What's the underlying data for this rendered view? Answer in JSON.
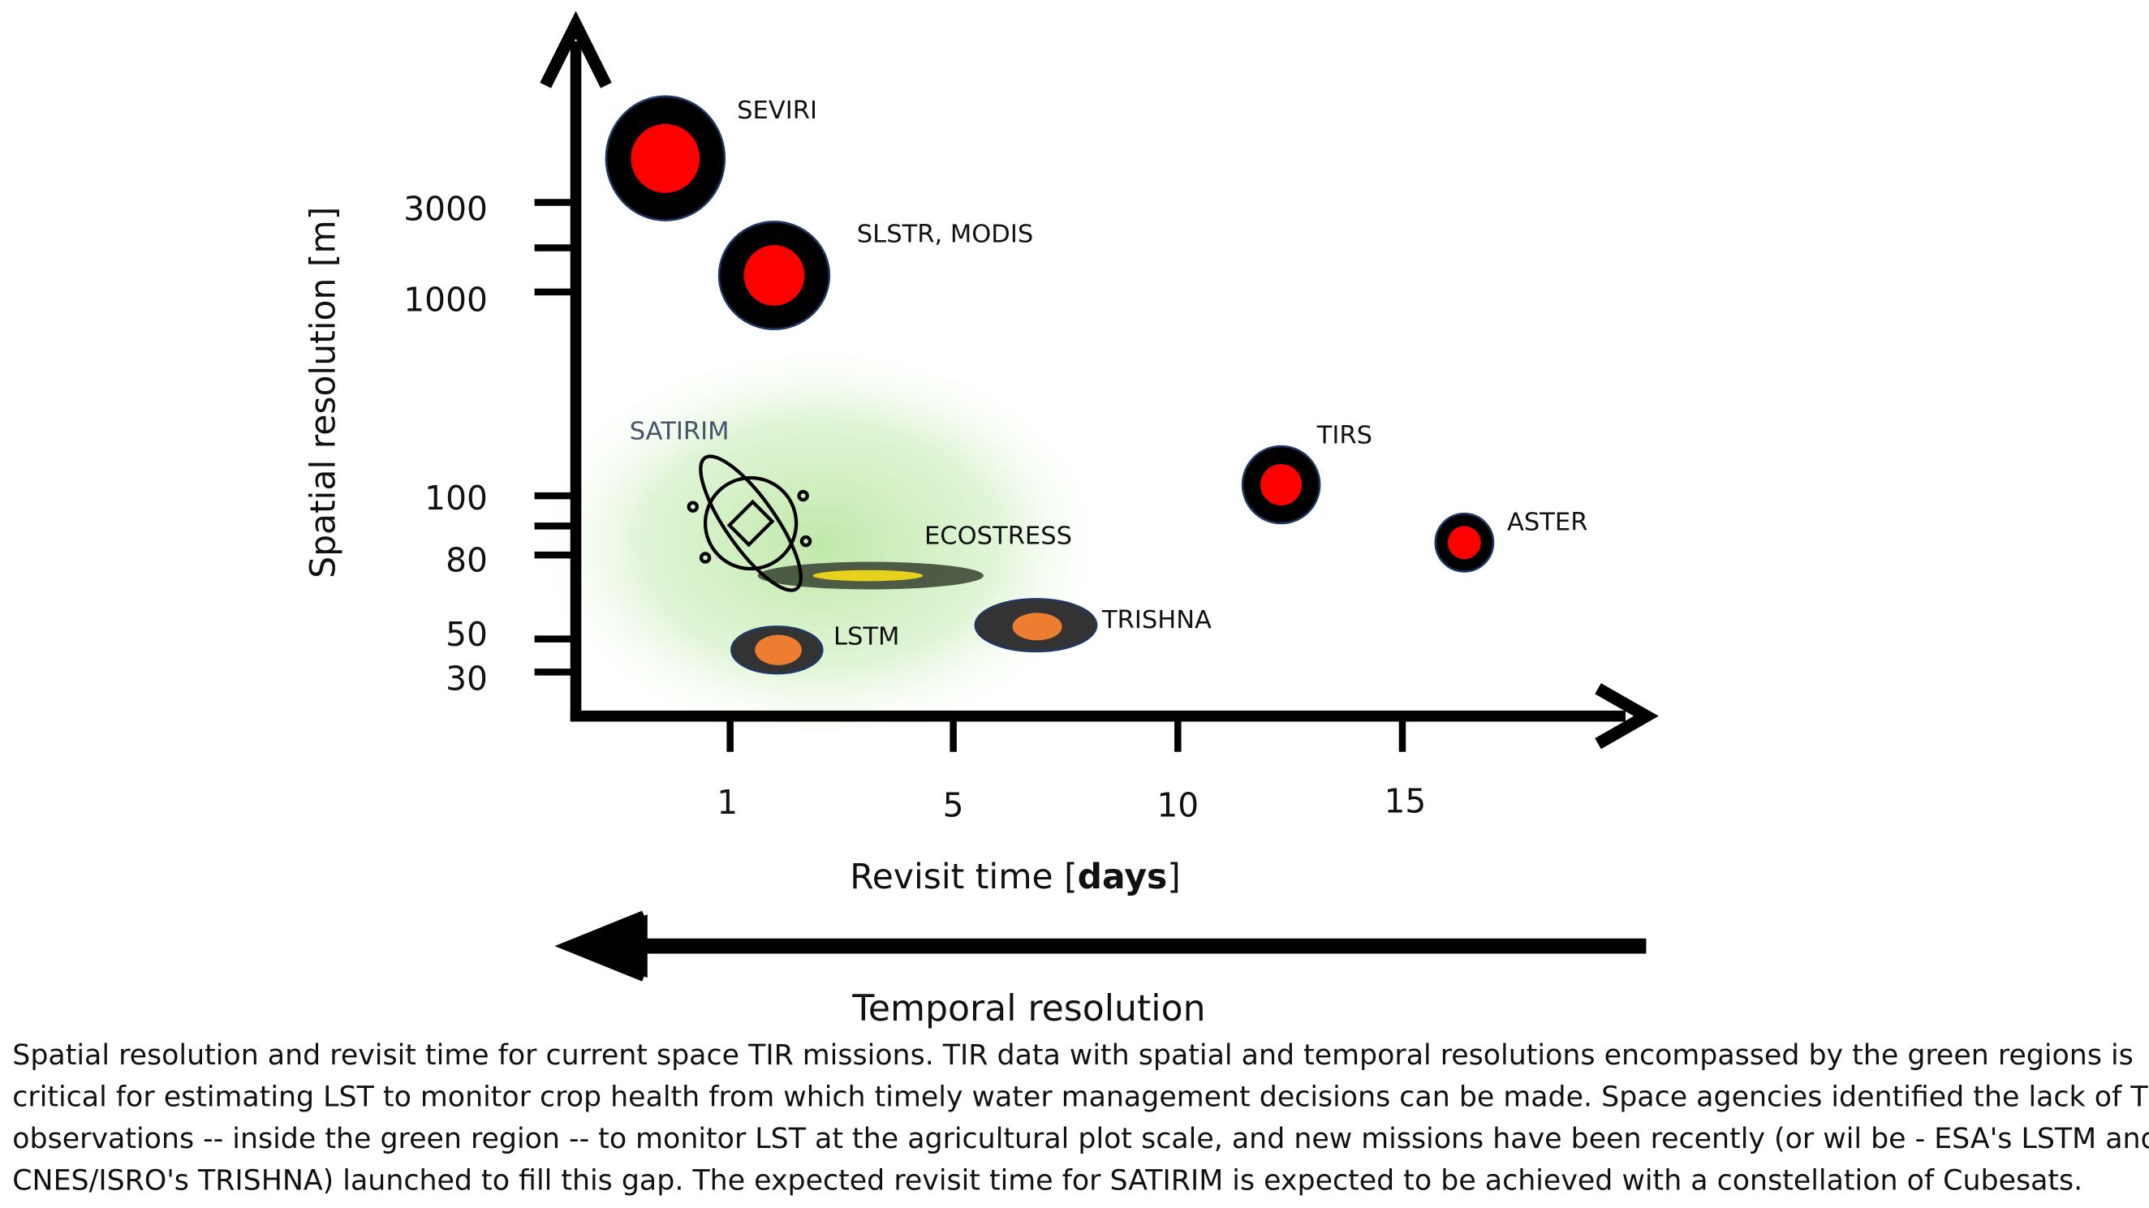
{
  "y_axis": {
    "label": "Spatial resolution [m]",
    "ticks": [
      3000,
      1000,
      100,
      80,
      50,
      30
    ]
  },
  "x_axis": {
    "label": "Revisit time [",
    "label_bold": "days",
    "label_end": "]",
    "ticks": [
      1,
      5,
      10,
      15
    ]
  },
  "arrow_label": "Temporal resolution",
  "region_label": "SATIRIM",
  "missions": [
    {
      "label": "SEVIRI"
    },
    {
      "label": "SLSTR, MODIS"
    },
    {
      "label": "TIRS"
    },
    {
      "label": "ASTER"
    },
    {
      "label": "ECOSTRESS"
    },
    {
      "label": "TRISHNA"
    },
    {
      "label": "LSTM"
    }
  ],
  "caption": [
    "Spatial resolution and revisit time for current space TIR missions. TIR data with spatial and temporal resolutions encompassed by the green regions is",
    "critical for estimating LST to monitor crop health from which timely water management decisions can be made. Space agencies identified the lack of TIR",
    "observations -- inside the green region -- to monitor LST at the agricultural plot scale, and new missions have been recently (or wil be - ESA's LSTM and",
    "CNES/ISRO's TRISHNA) launched to fill this gap. The expected revisit time for SATIRIM is expected to be achieved with a constellation of Cubesats."
  ]
}
